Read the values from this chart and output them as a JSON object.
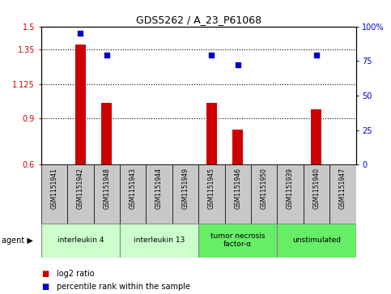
{
  "title": "GDS5262 / A_23_P61068",
  "samples": [
    "GSM1151941",
    "GSM1151942",
    "GSM1151948",
    "GSM1151943",
    "GSM1151944",
    "GSM1151949",
    "GSM1151945",
    "GSM1151946",
    "GSM1151950",
    "GSM1151939",
    "GSM1151940",
    "GSM1151947"
  ],
  "log2_ratio": [
    0.6,
    1.38,
    1.0,
    0.6,
    0.6,
    0.6,
    1.0,
    0.83,
    0.6,
    0.6,
    0.96,
    0.6
  ],
  "percentile_rank": [
    null,
    95,
    79,
    null,
    null,
    null,
    79,
    72,
    null,
    null,
    79,
    null
  ],
  "ylim_left": [
    0.6,
    1.5
  ],
  "ylim_right": [
    0,
    100
  ],
  "yticks_left": [
    0.6,
    0.9,
    1.125,
    1.35,
    1.5
  ],
  "yticks_right": [
    0,
    25,
    50,
    75,
    100
  ],
  "ytick_labels_left": [
    "0.6",
    "0.9",
    "1.125",
    "1.35",
    "1.5"
  ],
  "ytick_labels_right": [
    "0",
    "25",
    "50",
    "75",
    "100%"
  ],
  "grid_values": [
    0.9,
    1.125,
    1.35
  ],
  "bar_color": "#cc0000",
  "dot_color": "#0000cc",
  "agent_groups": [
    {
      "label": "interleukin 4",
      "start": 0,
      "end": 3,
      "color": "#ccffcc"
    },
    {
      "label": "interleukin 13",
      "start": 3,
      "end": 6,
      "color": "#ccffcc"
    },
    {
      "label": "tumor necrosis\nfactor-α",
      "start": 6,
      "end": 9,
      "color": "#66ee66"
    },
    {
      "label": "unstimulated",
      "start": 9,
      "end": 12,
      "color": "#66ee66"
    }
  ],
  "legend_red": "log2 ratio",
  "legend_blue": "percentile rank within the sample",
  "agent_label": "agent",
  "baseline": 0.6,
  "bg_color": "#ffffff",
  "sample_box_color": "#c8c8c8",
  "bar_width": 0.4
}
